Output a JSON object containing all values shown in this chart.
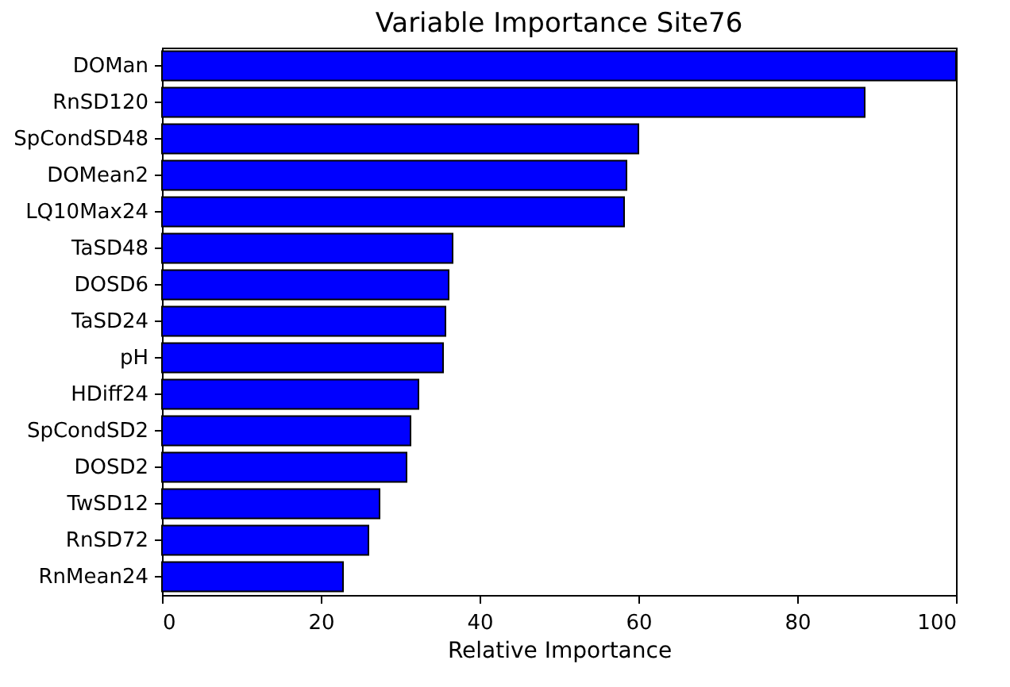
{
  "chart_data": {
    "type": "bar",
    "orientation": "horizontal",
    "title": "Variable Importance Site76",
    "xlabel": "Relative Importance",
    "categories": [
      "DOMan",
      "RnSD120",
      "SpCondSD48",
      "DOMean2",
      "LQ10Max24",
      "TaSD48",
      "DOSD6",
      "TaSD24",
      "pH",
      "HDiff24",
      "SpCondSD2",
      "DOSD2",
      "TwSD12",
      "RnSD72",
      "RnMean24"
    ],
    "values": [
      100,
      88.5,
      60,
      58.5,
      58.2,
      36.6,
      36.1,
      35.7,
      35.4,
      32.3,
      31.3,
      30.8,
      27.4,
      26,
      22.8
    ],
    "color": "#0000ff",
    "xlim": [
      0,
      100
    ],
    "xticks": [
      0,
      20,
      40,
      60,
      80,
      100
    ],
    "grid": false
  }
}
